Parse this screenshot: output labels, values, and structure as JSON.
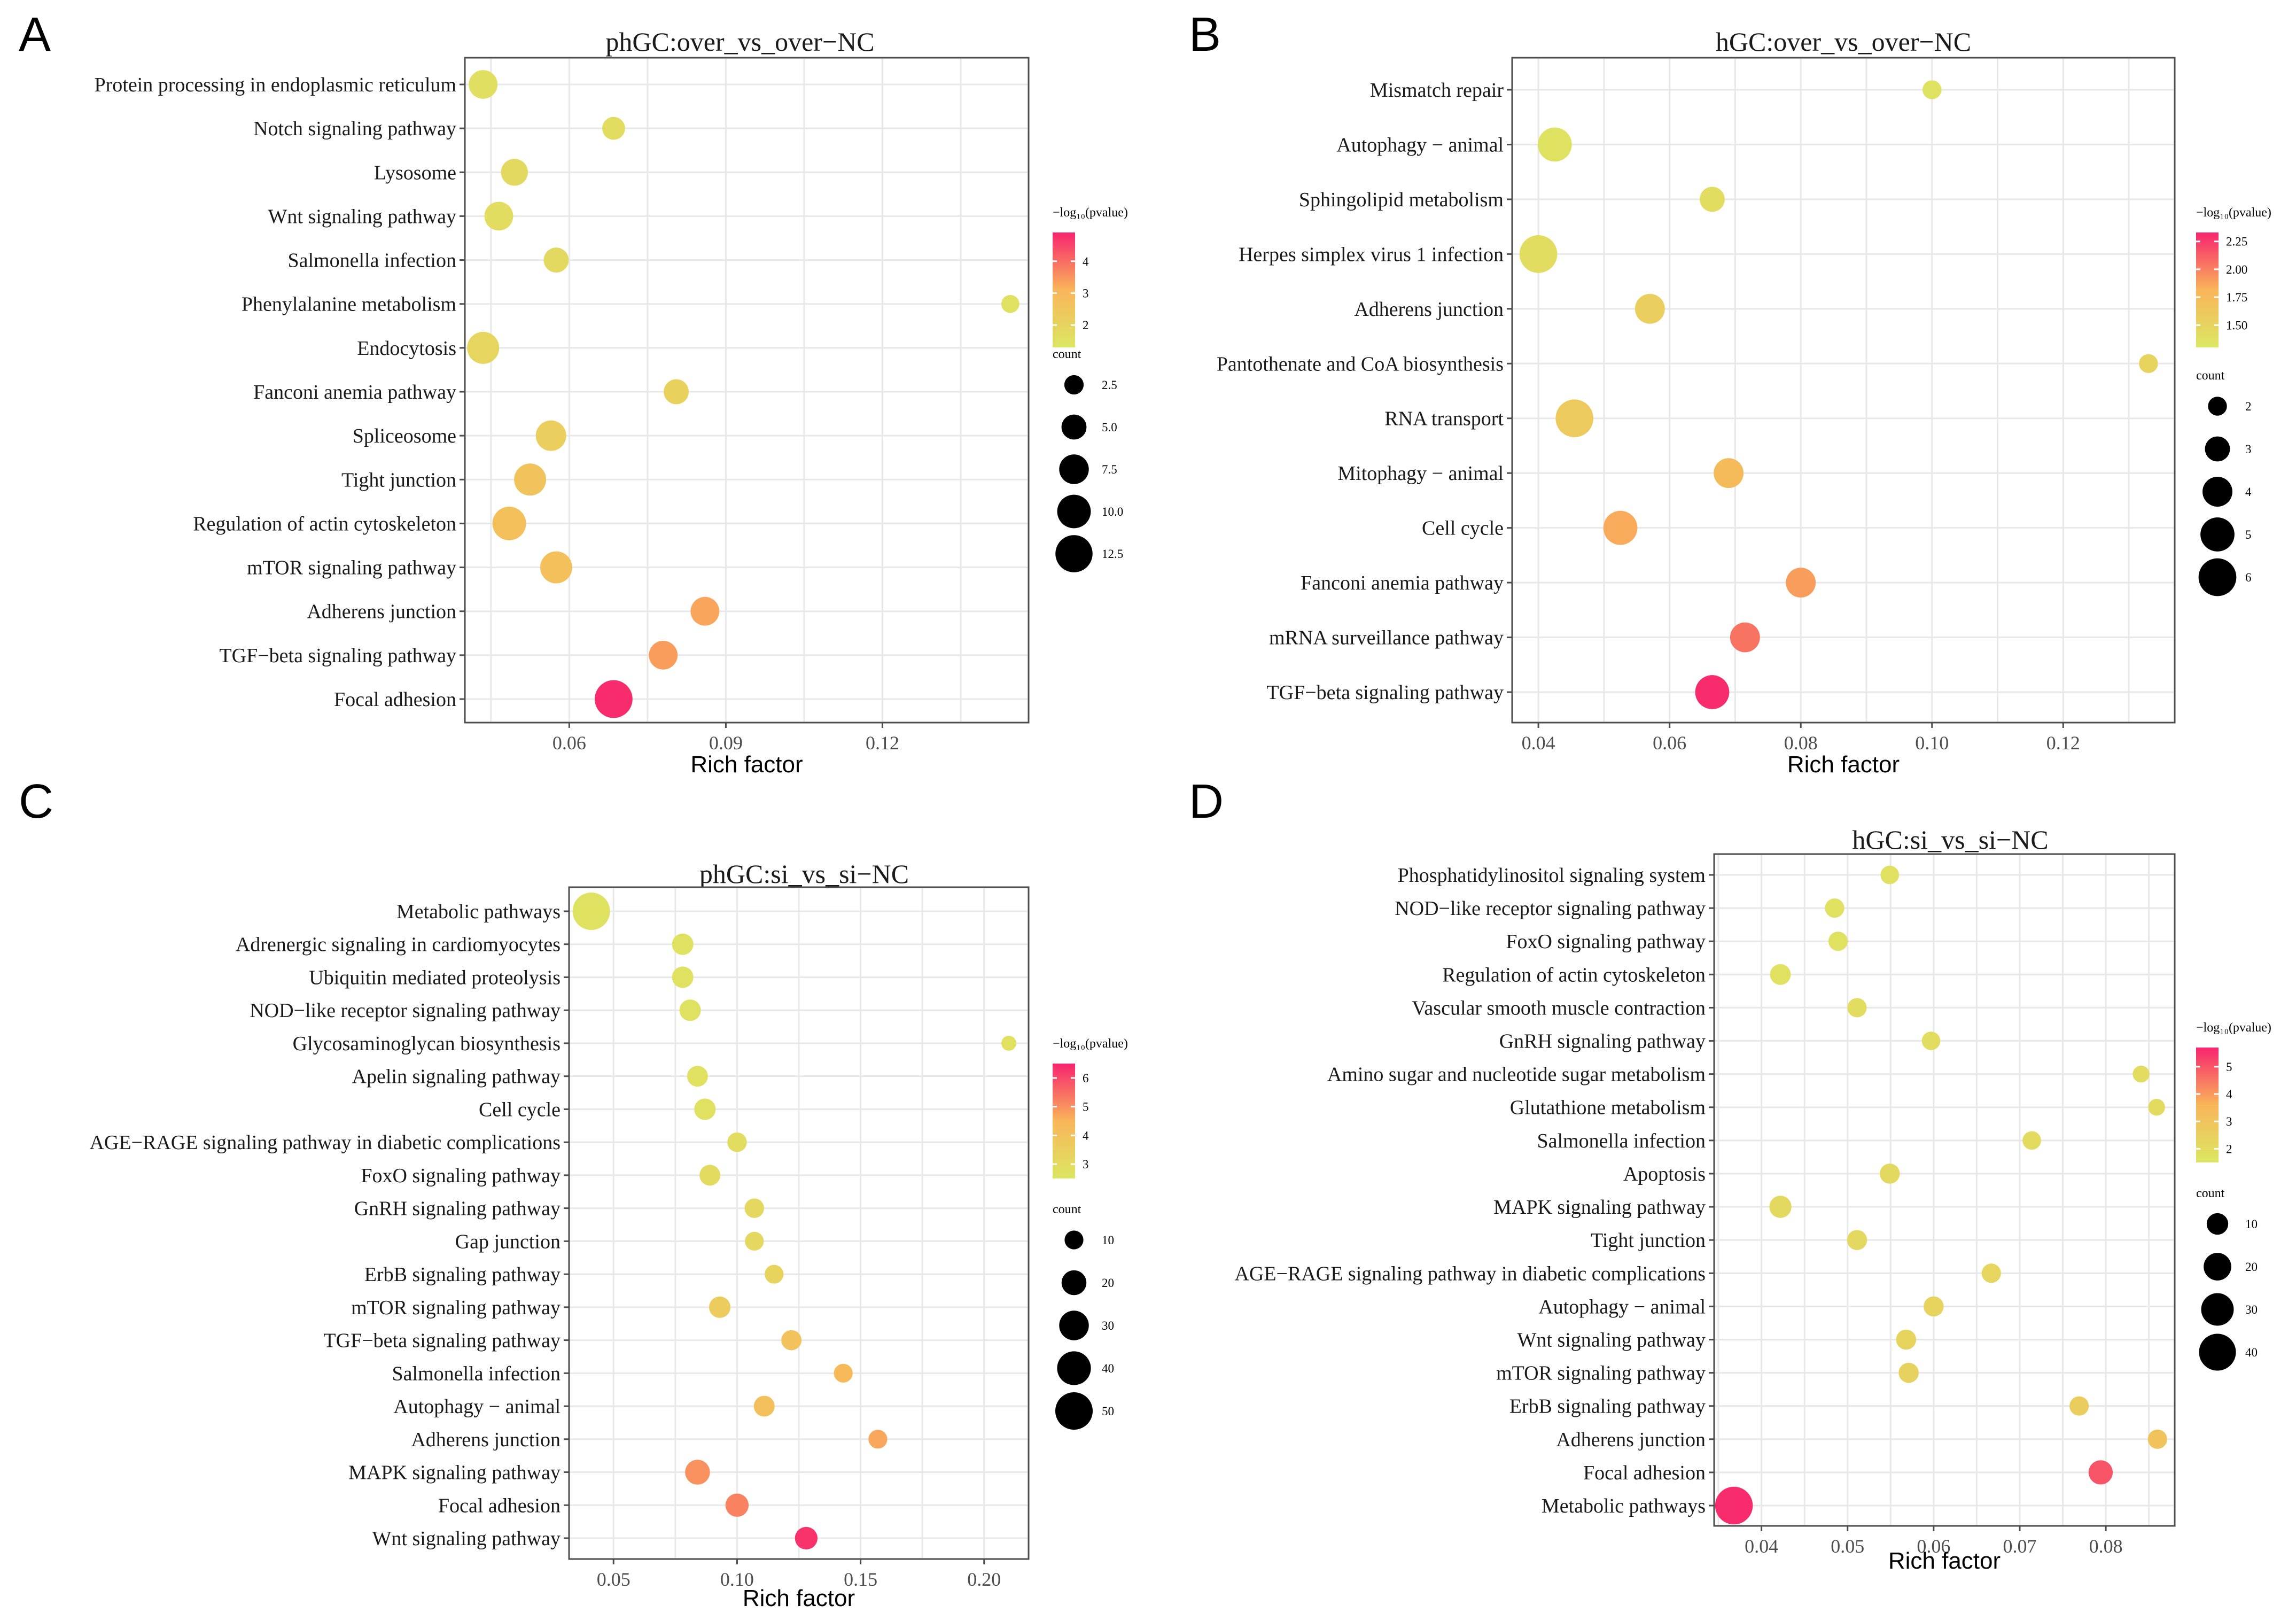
{
  "colors": {
    "low": "#DCE762",
    "mid": "#F9B55A",
    "high": "#F8246E"
  },
  "legend_titles": {
    "color": "−log₁₀(pvalue)",
    "size": "count"
  },
  "chart_data": [
    {
      "type": "scatter",
      "panel_letter": "A",
      "title": "phGC:over_vs_over−NC",
      "xlabel": "Rich factor",
      "ylabel": "",
      "xlim": [
        0.04,
        0.148
      ],
      "xticks": [
        0.06,
        0.09,
        0.12
      ],
      "xtick_labels": [
        "0.06",
        "0.09",
        "0.12"
      ],
      "color_range": [
        1.3,
        4.9
      ],
      "color_ticks": [
        2,
        3,
        4
      ],
      "size_range": [
        1,
        13.5
      ],
      "size_ticks": [
        2.5,
        5.0,
        7.5,
        10.0,
        12.5
      ],
      "size_tick_labels": [
        "2.5",
        "5.0",
        "7.5",
        "10.0",
        "12.5"
      ],
      "points": [
        {
          "term": "Protein processing in endoplasmic reticulum",
          "rich_factor": 0.0435,
          "log10p": 1.6,
          "count": 7
        },
        {
          "term": "Notch signaling pathway",
          "rich_factor": 0.0685,
          "log10p": 1.7,
          "count": 4
        },
        {
          "term": "Lysosome",
          "rich_factor": 0.0495,
          "log10p": 1.8,
          "count": 6
        },
        {
          "term": "Wnt signaling pathway",
          "rich_factor": 0.0465,
          "log10p": 1.7,
          "count": 7
        },
        {
          "term": "Salmonella infection",
          "rich_factor": 0.0575,
          "log10p": 1.8,
          "count": 5
        },
        {
          "term": "Phenylalanine metabolism",
          "rich_factor": 0.1445,
          "log10p": 1.5,
          "count": 2
        },
        {
          "term": "Endocytosis",
          "rich_factor": 0.0435,
          "log10p": 1.9,
          "count": 9
        },
        {
          "term": "Fanconi anemia pathway",
          "rich_factor": 0.0805,
          "log10p": 2.1,
          "count": 5
        },
        {
          "term": "Spliceosome",
          "rich_factor": 0.0565,
          "log10p": 2.2,
          "count": 8
        },
        {
          "term": "Tight junction",
          "rich_factor": 0.0525,
          "log10p": 2.6,
          "count": 9
        },
        {
          "term": "Regulation of actin cytoskeleton",
          "rich_factor": 0.0485,
          "log10p": 2.7,
          "count": 10
        },
        {
          "term": "mTOR signaling pathway",
          "rich_factor": 0.0575,
          "log10p": 2.7,
          "count": 9
        },
        {
          "term": "Adherens junction",
          "rich_factor": 0.086,
          "log10p": 3.3,
          "count": 7
        },
        {
          "term": "TGF−beta signaling pathway",
          "rich_factor": 0.078,
          "log10p": 3.4,
          "count": 7
        },
        {
          "term": "Focal adhesion",
          "rich_factor": 0.0685,
          "log10p": 4.8,
          "count": 13
        }
      ]
    },
    {
      "type": "scatter",
      "panel_letter": "B",
      "title": "hGC:over_vs_over−NC",
      "xlabel": "Rich factor",
      "ylabel": "",
      "xlim": [
        0.036,
        0.137
      ],
      "xticks": [
        0.04,
        0.06,
        0.08,
        0.1,
        0.12
      ],
      "xtick_labels": [
        "0.04",
        "0.06",
        "0.08",
        "0.10",
        "0.12"
      ],
      "color_range": [
        1.3,
        2.33
      ],
      "color_ticks": [
        1.5,
        1.75,
        2.0,
        2.25
      ],
      "color_tick_labels": [
        "1.50",
        "1.75",
        "2.00",
        "2.25"
      ],
      "size_range": [
        1.5,
        6.2
      ],
      "size_ticks": [
        2,
        3,
        4,
        5,
        6
      ],
      "size_tick_labels": [
        "2",
        "3",
        "4",
        "5",
        "6"
      ],
      "points": [
        {
          "term": "Mismatch repair",
          "rich_factor": 0.1,
          "log10p": 1.35,
          "count": 2
        },
        {
          "term": "Autophagy − animal",
          "rich_factor": 0.0425,
          "log10p": 1.35,
          "count": 5
        },
        {
          "term": "Sphingolipid metabolism",
          "rich_factor": 0.0665,
          "log10p": 1.4,
          "count": 3
        },
        {
          "term": "Herpes simplex virus 1 infection",
          "rich_factor": 0.04,
          "log10p": 1.4,
          "count": 6
        },
        {
          "term": "Adherens junction",
          "rich_factor": 0.057,
          "log10p": 1.55,
          "count": 4
        },
        {
          "term": "Pantothenate and CoA biosynthesis",
          "rich_factor": 0.133,
          "log10p": 1.5,
          "count": 2
        },
        {
          "term": "RNA transport",
          "rich_factor": 0.0455,
          "log10p": 1.6,
          "count": 6
        },
        {
          "term": "Mitophagy − animal",
          "rich_factor": 0.069,
          "log10p": 1.75,
          "count": 4
        },
        {
          "term": "Cell cycle",
          "rich_factor": 0.0525,
          "log10p": 1.85,
          "count": 5
        },
        {
          "term": "Fanconi anemia pathway",
          "rich_factor": 0.08,
          "log10p": 1.9,
          "count": 4
        },
        {
          "term": "mRNA surveillance pathway",
          "rich_factor": 0.0715,
          "log10p": 2.05,
          "count": 4
        },
        {
          "term": "TGF−beta signaling pathway",
          "rich_factor": 0.0665,
          "log10p": 2.3,
          "count": 5
        }
      ]
    },
    {
      "type": "scatter",
      "panel_letter": "C",
      "title": "phGC:si_vs_si−NC",
      "xlabel": "Rich factor",
      "ylabel": "",
      "xlim": [
        0.032,
        0.218
      ],
      "xticks": [
        0.05,
        0.1,
        0.15,
        0.2
      ],
      "xtick_labels": [
        "0.05",
        "0.10",
        "0.15",
        "0.20"
      ],
      "color_range": [
        2.5,
        6.5
      ],
      "color_ticks": [
        3,
        4,
        5,
        6
      ],
      "size_range": [
        5,
        53
      ],
      "size_ticks": [
        10,
        20,
        30,
        40,
        50
      ],
      "size_tick_labels": [
        "10",
        "20",
        "30",
        "40",
        "50"
      ],
      "points": [
        {
          "term": "Metabolic pathways",
          "rich_factor": 0.041,
          "log10p": 2.7,
          "count": 50
        },
        {
          "term": "Adrenergic signaling in cardiomyocytes",
          "rich_factor": 0.078,
          "log10p": 2.7,
          "count": 14
        },
        {
          "term": "Ubiquitin mediated proteolysis",
          "rich_factor": 0.078,
          "log10p": 2.7,
          "count": 14
        },
        {
          "term": "NOD−like receptor signaling pathway",
          "rich_factor": 0.081,
          "log10p": 2.7,
          "count": 14
        },
        {
          "term": "Glycosaminoglycan biosynthesis",
          "rich_factor": 0.21,
          "log10p": 2.8,
          "count": 5
        },
        {
          "term": "Apelin signaling pathway",
          "rich_factor": 0.084,
          "log10p": 2.8,
          "count": 13
        },
        {
          "term": "Cell cycle",
          "rich_factor": 0.087,
          "log10p": 2.8,
          "count": 14
        },
        {
          "term": "AGE−RAGE signaling pathway in diabetic complications",
          "rich_factor": 0.1,
          "log10p": 2.9,
          "count": 11
        },
        {
          "term": "FoxO signaling pathway",
          "rich_factor": 0.089,
          "log10p": 3.0,
          "count": 13
        },
        {
          "term": "GnRH signaling pathway",
          "rich_factor": 0.107,
          "log10p": 3.1,
          "count": 11
        },
        {
          "term": "Gap junction",
          "rich_factor": 0.107,
          "log10p": 3.1,
          "count": 10
        },
        {
          "term": "ErbB signaling pathway",
          "rich_factor": 0.115,
          "log10p": 3.3,
          "count": 10
        },
        {
          "term": "mTOR signaling pathway",
          "rich_factor": 0.093,
          "log10p": 3.6,
          "count": 14
        },
        {
          "term": "TGF−beta signaling pathway",
          "rich_factor": 0.122,
          "log10p": 4.0,
          "count": 12
        },
        {
          "term": "Salmonella infection",
          "rich_factor": 0.143,
          "log10p": 4.3,
          "count": 10
        },
        {
          "term": "Autophagy − animal",
          "rich_factor": 0.111,
          "log10p": 4.1,
          "count": 13
        },
        {
          "term": "Adherens junction",
          "rich_factor": 0.157,
          "log10p": 4.7,
          "count": 10
        },
        {
          "term": "MAPK signaling pathway",
          "rich_factor": 0.084,
          "log10p": 5.0,
          "count": 20
        },
        {
          "term": "Focal adhesion",
          "rich_factor": 0.1,
          "log10p": 5.2,
          "count": 17
        },
        {
          "term": "Wnt signaling pathway",
          "rich_factor": 0.128,
          "log10p": 6.3,
          "count": 16
        }
      ]
    },
    {
      "type": "scatter",
      "panel_letter": "D",
      "title": "hGC:si_vs_si−NC",
      "xlabel": "Rich factor",
      "ylabel": "",
      "xlim": [
        0.0345,
        0.088
      ],
      "xticks": [
        0.04,
        0.05,
        0.06,
        0.07,
        0.08
      ],
      "xtick_labels": [
        "0.04",
        "0.05",
        "0.06",
        "0.07",
        "0.08"
      ],
      "color_range": [
        1.5,
        5.7
      ],
      "color_ticks": [
        2,
        3,
        4,
        5
      ],
      "size_range": [
        2,
        44
      ],
      "size_ticks": [
        10,
        20,
        30,
        40
      ],
      "size_tick_labels": [
        "10",
        "20",
        "30",
        "40"
      ],
      "points": [
        {
          "term": "Phosphatidylinositol signaling system",
          "rich_factor": 0.0549,
          "log10p": 1.8,
          "count": 6
        },
        {
          "term": "NOD−like receptor signaling pathway",
          "rich_factor": 0.0485,
          "log10p": 1.8,
          "count": 7
        },
        {
          "term": "FoxO signaling pathway",
          "rich_factor": 0.0489,
          "log10p": 1.8,
          "count": 7
        },
        {
          "term": "Regulation of actin cytoskeleton",
          "rich_factor": 0.0422,
          "log10p": 1.8,
          "count": 9
        },
        {
          "term": "Vascular smooth muscle contraction",
          "rich_factor": 0.0511,
          "log10p": 1.9,
          "count": 7
        },
        {
          "term": "GnRH signaling pathway",
          "rich_factor": 0.0597,
          "log10p": 1.9,
          "count": 6
        },
        {
          "term": "Amino sugar and nucleotide sugar metabolism",
          "rich_factor": 0.0841,
          "log10p": 1.9,
          "count": 4
        },
        {
          "term": "Glutathione metabolism",
          "rich_factor": 0.0859,
          "log10p": 2.0,
          "count": 4
        },
        {
          "term": "Salmonella infection",
          "rich_factor": 0.0714,
          "log10p": 2.0,
          "count": 6
        },
        {
          "term": "Apoptosis",
          "rich_factor": 0.0549,
          "log10p": 2.1,
          "count": 8
        },
        {
          "term": "MAPK signaling pathway",
          "rich_factor": 0.0422,
          "log10p": 2.1,
          "count": 11
        },
        {
          "term": "Tight junction",
          "rich_factor": 0.0511,
          "log10p": 2.1,
          "count": 8
        },
        {
          "term": "AGE−RAGE signaling pathway in diabetic complications",
          "rich_factor": 0.0667,
          "log10p": 2.2,
          "count": 7
        },
        {
          "term": "Autophagy − animal",
          "rich_factor": 0.06,
          "log10p": 2.3,
          "count": 8
        },
        {
          "term": "Wnt signaling pathway",
          "rich_factor": 0.0568,
          "log10p": 2.3,
          "count": 8
        },
        {
          "term": "mTOR signaling pathway",
          "rich_factor": 0.0571,
          "log10p": 2.4,
          "count": 8
        },
        {
          "term": "ErbB signaling pathway",
          "rich_factor": 0.0769,
          "log10p": 2.6,
          "count": 7
        },
        {
          "term": "Adherens junction",
          "rich_factor": 0.086,
          "log10p": 3.0,
          "count": 7
        },
        {
          "term": "Focal adhesion",
          "rich_factor": 0.0794,
          "log10p": 5.0,
          "count": 14
        },
        {
          "term": "Metabolic pathways",
          "rich_factor": 0.0368,
          "log10p": 5.6,
          "count": 42
        }
      ]
    }
  ]
}
